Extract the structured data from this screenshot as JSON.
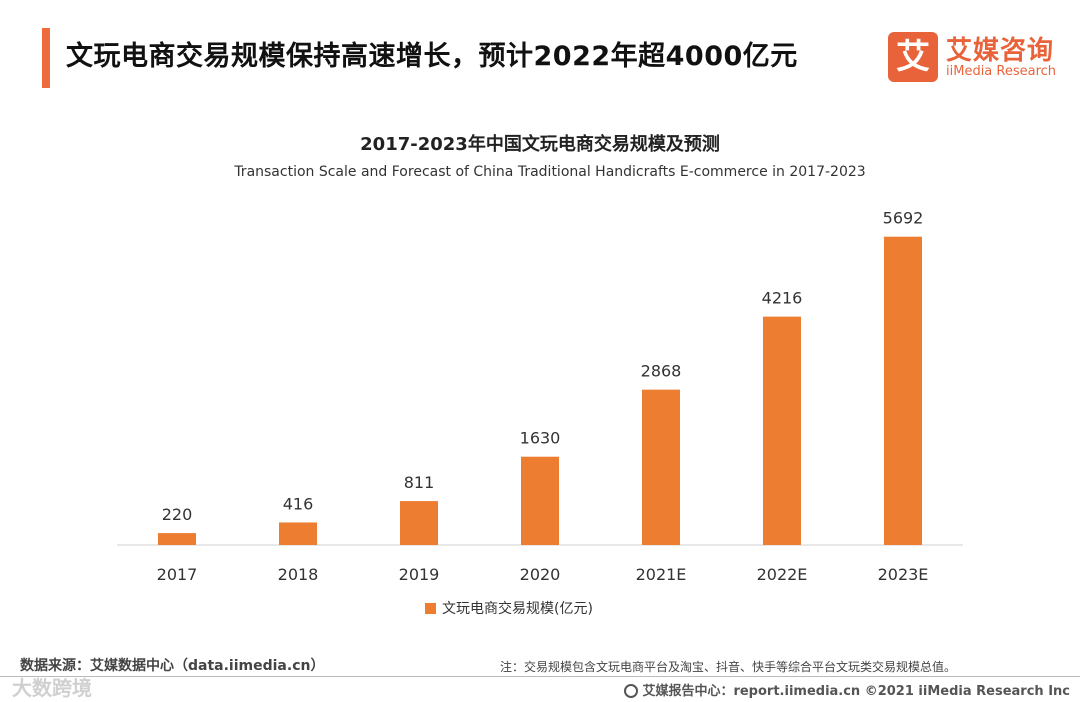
{
  "header": {
    "title": "文玩电商交易规模保持高速增长，预计2022年超4000亿元",
    "logo_mark": "艾",
    "logo_cn": "艾媒咨询",
    "logo_en": "iiMedia Research"
  },
  "chart_data": {
    "type": "bar",
    "title": "2017-2023年中国文玩电商交易规模及预测",
    "subtitle": "Transaction Scale and Forecast of China Traditional Handicrafts E-commerce in 2017-2023",
    "categories": [
      "2017",
      "2018",
      "2019",
      "2020",
      "2021E",
      "2022E",
      "2023E"
    ],
    "series": [
      {
        "name": "文玩电商交易规模(亿元)",
        "values": [
          220,
          416,
          811,
          1630,
          2868,
          4216,
          5692
        ]
      }
    ],
    "data_labels": [
      "220",
      "416",
      "811",
      "1630",
      "2868",
      "4216",
      "5692"
    ],
    "ylim": [
      0,
      6000
    ],
    "bar_color": "#ed7d31",
    "xlabel": "",
    "ylabel": "",
    "legend_position": "bottom"
  },
  "footer": {
    "source": "数据来源：艾媒数据中心（data.iimedia.cn）",
    "note": "注：交易规模包含文玩电商平台及淘宝、抖音、快手等综合平台文玩类交易规模总值。",
    "credit": "艾媒报告中心：report.iimedia.cn  ©2021  iiMedia Research  Inc",
    "watermark": "大数跨境"
  }
}
